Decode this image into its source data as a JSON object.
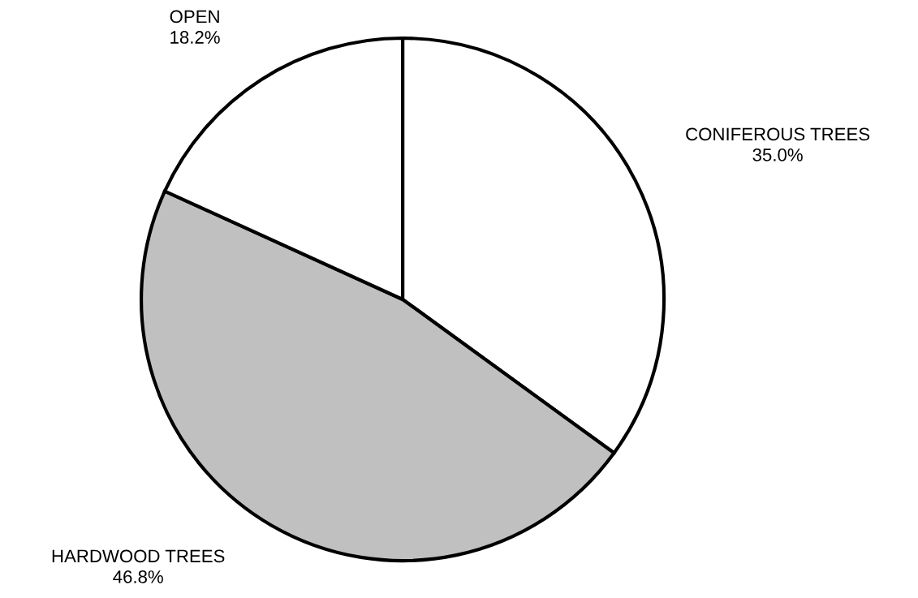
{
  "chart_data": {
    "type": "pie",
    "categories": [
      "CONIFEROUS TREES",
      "HARDWOOD TREES",
      "OPEN"
    ],
    "values": [
      35.0,
      46.8,
      18.2
    ],
    "value_labels": [
      "35.0%",
      "46.8%",
      "18.2%"
    ],
    "colors": [
      "#ffffff",
      "#c0c0c0",
      "#ffffff"
    ]
  }
}
